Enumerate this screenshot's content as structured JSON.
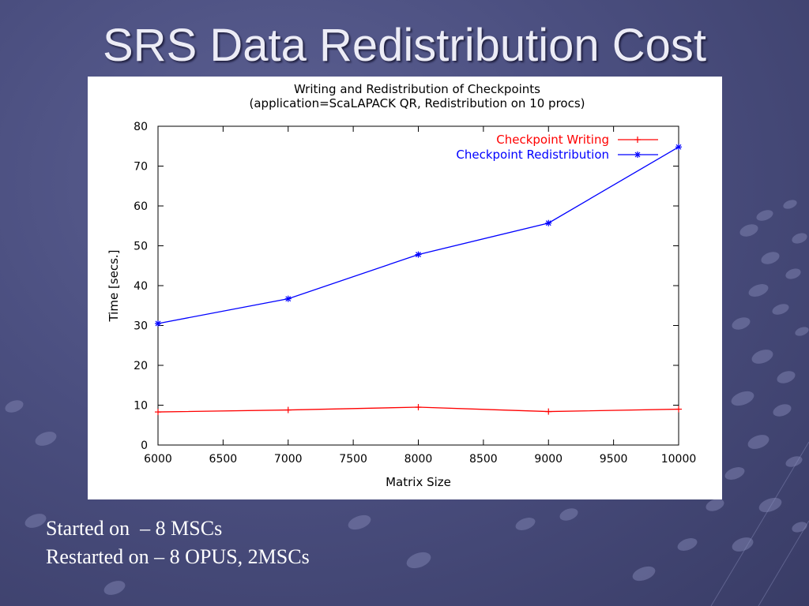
{
  "slide": {
    "title": "SRS Data Redistribution Cost",
    "lines": [
      "Started on  – 8 MSCs",
      "Restarted on – 8 OPUS, 2MSCs"
    ]
  },
  "colors": {
    "series_writing": "#ff0000",
    "series_redistribution": "#0000ff"
  },
  "chart_data": {
    "type": "line",
    "title": "Writing and Redistribution of Checkpoints",
    "subtitle": "(application=ScaLAPACK QR, Redistribution on 10 procs)",
    "xlabel": "Matrix Size",
    "ylabel": "Time [secs.]",
    "xlim": [
      6000,
      10000
    ],
    "ylim": [
      0,
      80
    ],
    "xticks": [
      6000,
      6500,
      7000,
      7500,
      8000,
      8500,
      9000,
      9500,
      10000
    ],
    "yticks": [
      0,
      10,
      20,
      30,
      40,
      50,
      60,
      70,
      80
    ],
    "grid": false,
    "legend_position": "top-right",
    "x": [
      6000,
      7000,
      8000,
      9000,
      10000
    ],
    "series": [
      {
        "name": "Checkpoint Writing",
        "marker": "+",
        "values": [
          8.3,
          8.8,
          9.5,
          8.4,
          9.0
        ]
      },
      {
        "name": "Checkpoint Redistribution",
        "marker": "*",
        "values": [
          30.5,
          36.7,
          47.8,
          55.7,
          74.8
        ]
      }
    ]
  }
}
